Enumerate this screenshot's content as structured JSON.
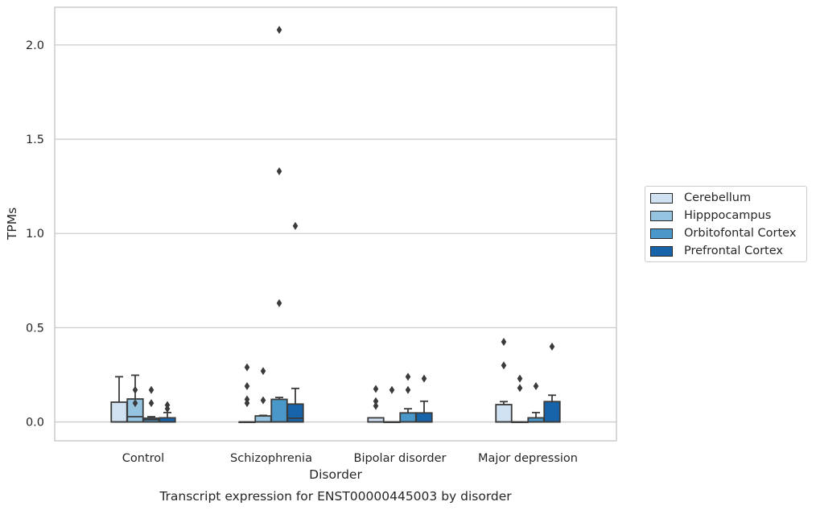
{
  "chart_data": {
    "type": "box",
    "title": "Transcript expression for ENST00000445003 by disorder",
    "xlabel": "Disorder",
    "ylabel": "TPMs",
    "ylim": [
      -0.1,
      2.2
    ],
    "yticks": [
      0.0,
      0.5,
      1.0,
      1.5,
      2.0
    ],
    "ytick_labels": [
      "0.0",
      "0.5",
      "1.0",
      "1.5",
      "2.0"
    ],
    "grid": "horizontal",
    "legend_position": "right",
    "categories": [
      "Control",
      "Schizophrenia",
      "Bipolar disorder",
      "Major depression"
    ],
    "series": [
      {
        "name": "Cerebellum",
        "color": "#d0e1f2",
        "boxes": [
          {
            "q1": 0.0,
            "median": 0.0,
            "q3": 0.105,
            "whisker_low": 0.0,
            "whisker_high": 0.24,
            "outliers": []
          },
          {
            "q1": 0.0,
            "median": 0.0,
            "q3": 0.0,
            "whisker_low": 0.0,
            "whisker_high": 0.0,
            "outliers": [
              0.1,
              0.12,
              0.19,
              0.29
            ]
          },
          {
            "q1": 0.0,
            "median": 0.0,
            "q3": 0.022,
            "whisker_low": 0.0,
            "whisker_high": 0.022,
            "outliers": [
              0.085,
              0.11,
              0.175
            ]
          },
          {
            "q1": 0.0,
            "median": 0.0,
            "q3": 0.092,
            "whisker_low": 0.0,
            "whisker_high": 0.108,
            "outliers": [
              0.3,
              0.425
            ]
          }
        ]
      },
      {
        "name": "Hipppocampus",
        "color": "#94c4df",
        "boxes": [
          {
            "q1": 0.0,
            "median": 0.028,
            "q3": 0.122,
            "whisker_low": 0.0,
            "whisker_high": 0.248,
            "outliers": [
              0.1,
              0.17
            ]
          },
          {
            "q1": 0.0,
            "median": 0.0,
            "q3": 0.032,
            "whisker_low": 0.0,
            "whisker_high": 0.035,
            "outliers": [
              0.115,
              0.27
            ]
          },
          {
            "q1": 0.0,
            "median": 0.0,
            "q3": 0.0,
            "whisker_low": 0.0,
            "whisker_high": 0.0,
            "outliers": [
              0.17
            ]
          },
          {
            "q1": 0.0,
            "median": 0.0,
            "q3": 0.0,
            "whisker_low": 0.0,
            "whisker_high": 0.0,
            "outliers": [
              0.18,
              0.23
            ]
          }
        ]
      },
      {
        "name": "Orbitofontal Cortex",
        "color": "#4a98c9",
        "boxes": [
          {
            "q1": 0.0,
            "median": 0.012,
            "q3": 0.02,
            "whisker_low": 0.0,
            "whisker_high": 0.028,
            "outliers": [
              0.1,
              0.17
            ]
          },
          {
            "q1": 0.0,
            "median": 0.0,
            "q3": 0.12,
            "whisker_low": 0.0,
            "whisker_high": 0.13,
            "outliers": [
              0.63,
              1.33,
              2.08
            ]
          },
          {
            "q1": 0.0,
            "median": 0.0,
            "q3": 0.048,
            "whisker_low": 0.0,
            "whisker_high": 0.07,
            "outliers": [
              0.17,
              0.24
            ]
          },
          {
            "q1": 0.0,
            "median": 0.0,
            "q3": 0.022,
            "whisker_low": 0.0,
            "whisker_high": 0.05,
            "outliers": [
              0.19
            ]
          }
        ]
      },
      {
        "name": "Prefrontal Cortex",
        "color": "#1764ab",
        "boxes": [
          {
            "q1": 0.0,
            "median": 0.0,
            "q3": 0.022,
            "whisker_low": 0.0,
            "whisker_high": 0.05,
            "outliers": [
              0.07,
              0.09
            ]
          },
          {
            "q1": 0.0,
            "median": 0.02,
            "q3": 0.095,
            "whisker_low": 0.0,
            "whisker_high": 0.178,
            "outliers": [
              1.04
            ]
          },
          {
            "q1": 0.0,
            "median": 0.0,
            "q3": 0.048,
            "whisker_low": 0.0,
            "whisker_high": 0.11,
            "outliers": [
              0.23
            ]
          },
          {
            "q1": 0.0,
            "median": 0.0,
            "q3": 0.108,
            "whisker_low": 0.0,
            "whisker_high": 0.142,
            "outliers": [
              0.4
            ]
          }
        ]
      }
    ]
  }
}
